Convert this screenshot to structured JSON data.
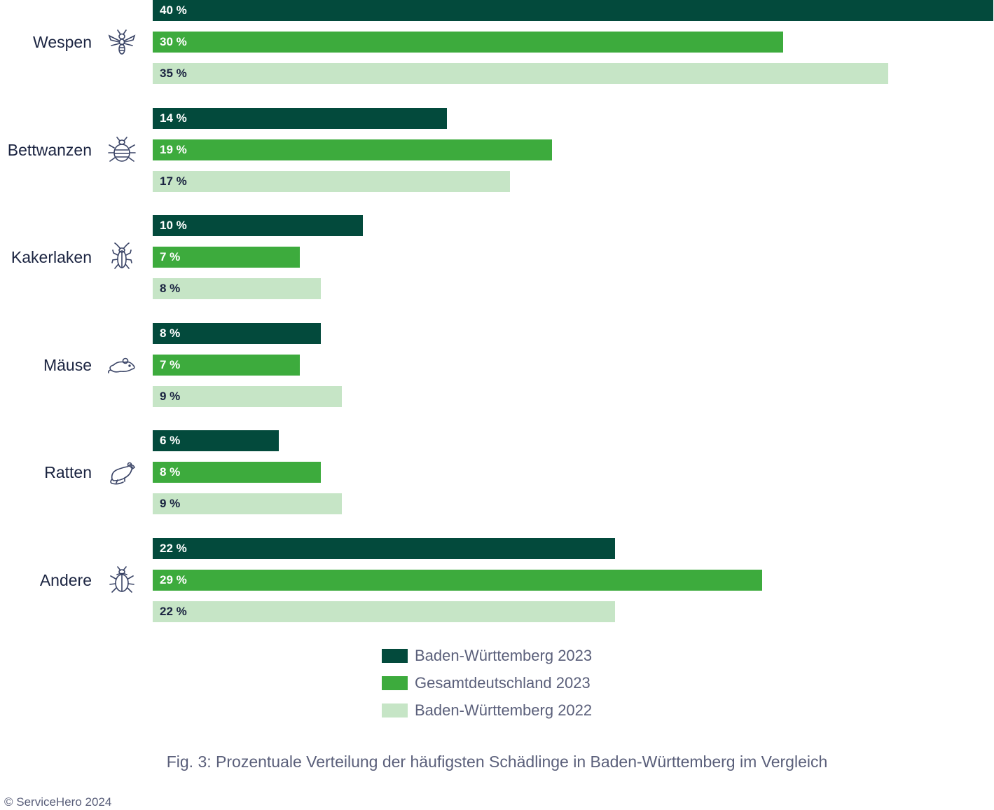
{
  "chart_data": {
    "type": "bar",
    "orientation": "horizontal",
    "categories": [
      "Wespen",
      "Bettwanzen",
      "Kakerlaken",
      "Mäuse",
      "Ratten",
      "Andere"
    ],
    "category_icons": [
      "wasp-icon",
      "bedbug-icon",
      "cockroach-icon",
      "mouse-icon",
      "rat-icon",
      "beetle-icon"
    ],
    "series": [
      {
        "name": "Baden-Württemberg 2023",
        "color": "#034a3c",
        "values": [
          40,
          14,
          10,
          8,
          6,
          22
        ],
        "labels": [
          "40 %",
          "14 %",
          "10 %",
          "8 %",
          "6 %",
          "22 %"
        ]
      },
      {
        "name": "Gesamtdeutschland 2023",
        "color": "#3dab3d",
        "values": [
          30,
          19,
          7,
          7,
          8,
          29
        ],
        "labels": [
          "30 %",
          "19 %",
          "7 %",
          "7 %",
          "8 %",
          "29 %"
        ]
      },
      {
        "name": "Baden-Württemberg 2022",
        "color": "#c6e5c6",
        "values": [
          35,
          17,
          8,
          9,
          9,
          22
        ],
        "labels": [
          "35 %",
          "17 %",
          "8 %",
          "9 %",
          "9 %",
          "22 %"
        ]
      }
    ],
    "xlim": [
      0,
      40
    ],
    "grid": false,
    "legend_position": "bottom-center",
    "title": "",
    "xlabel": "",
    "ylabel": ""
  },
  "caption": "Fig. 3: Prozentuale Verteilung der häufigsten Schädlinge in Baden-Württemberg im Vergleich",
  "copyright": "© ServiceHero 2024"
}
